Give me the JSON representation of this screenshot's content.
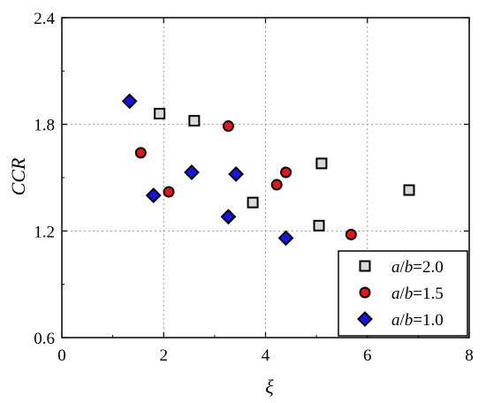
{
  "chart_data": {
    "type": "scatter",
    "xlabel": "ξ",
    "ylabel": "CCR",
    "xlim": [
      0,
      8
    ],
    "ylim": [
      0.6,
      2.4
    ],
    "xticks": [
      0,
      2,
      4,
      6,
      8
    ],
    "yticks": [
      0.6,
      1.2,
      1.8,
      2.4
    ],
    "xtick_labels": [
      "0",
      "2",
      "4",
      "6",
      "8"
    ],
    "ytick_labels": [
      "0.6",
      "1.2",
      "1.8",
      "2.4"
    ],
    "grid": true,
    "legend_position": "bottom-right",
    "series": [
      {
        "name": "a/b=2.0",
        "marker": "square",
        "color": "#d9d9d9",
        "legend_parts": [
          "a",
          "/",
          "b",
          "=2.0"
        ],
        "points": [
          [
            1.92,
            1.86
          ],
          [
            2.6,
            1.82
          ],
          [
            3.75,
            1.36
          ],
          [
            5.05,
            1.23
          ],
          [
            5.1,
            1.58
          ],
          [
            6.82,
            1.43
          ]
        ]
      },
      {
        "name": "a/b=1.5",
        "marker": "circle",
        "color": "#e8141a",
        "legend_parts": [
          "a",
          "/",
          "b",
          "=1.5"
        ],
        "points": [
          [
            1.55,
            1.64
          ],
          [
            2.1,
            1.42
          ],
          [
            3.27,
            1.79
          ],
          [
            4.22,
            1.46
          ],
          [
            4.4,
            1.53
          ],
          [
            5.68,
            1.18
          ]
        ]
      },
      {
        "name": "a/b=1.0",
        "marker": "diamond",
        "color": "#1414e6",
        "legend_parts": [
          "a",
          "/",
          "b",
          "=1.0"
        ],
        "points": [
          [
            1.33,
            1.93
          ],
          [
            1.8,
            1.4
          ],
          [
            2.55,
            1.53
          ],
          [
            3.27,
            1.28
          ],
          [
            3.42,
            1.52
          ],
          [
            4.4,
            1.16
          ]
        ]
      }
    ]
  }
}
